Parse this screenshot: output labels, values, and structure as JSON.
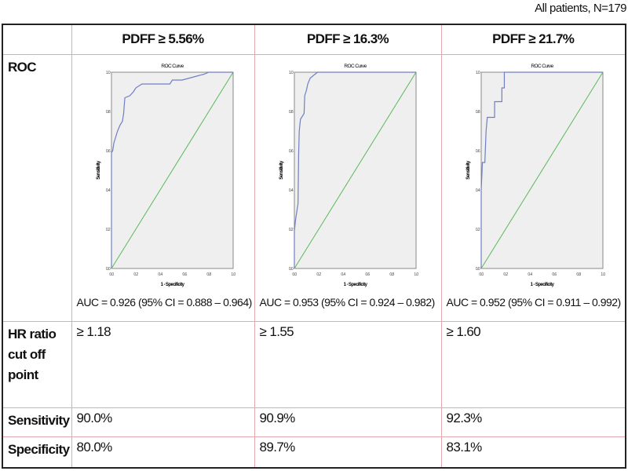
{
  "caption": "All patients, N=179",
  "table": {
    "columns": [
      "",
      "PDFF ≥ 5.56%",
      "PDFF ≥ 16.3%",
      "PDFF ≥ 21.7%"
    ],
    "rows": {
      "roc_label": "ROC",
      "auc": [
        "AUC = 0.926 (95% CI = 0.888 – 0.964)",
        "AUC = 0.953 (95% CI = 0.924 – 0.982)",
        "AUC = 0.952 (95% CI = 0.911 – 0.992)"
      ],
      "hr_label_lines": [
        "HR ratio",
        "cut off",
        "point"
      ],
      "hr_values": [
        "≥ 1.18",
        "≥ 1.55",
        "≥ 1.60"
      ],
      "sensitivity_label": "Sensitivity",
      "sensitivity": [
        "90.0%",
        "90.9%",
        "92.3%"
      ],
      "specificity_label": "Specificity",
      "specificity": [
        "80.0%",
        "89.7%",
        "83.1%"
      ]
    }
  },
  "chart_data": [
    {
      "type": "line",
      "title": "ROC Curve",
      "xlabel": "1 - Specificity",
      "ylabel": "Sensitivity",
      "xlim": [
        0,
        1
      ],
      "ylim": [
        0,
        1
      ],
      "xticks": [
        "0.0",
        "0.2",
        "0.4",
        "0.6",
        "0.8",
        "1.0"
      ],
      "yticks": [
        "0.0",
        "0.2",
        "0.4",
        "0.6",
        "0.8",
        "1.0"
      ],
      "series": [
        {
          "color": "#6f7fc4",
          "points": [
            [
              0,
              0
            ],
            [
              0,
              0.59
            ],
            [
              0.01,
              0.6
            ],
            [
              0.02,
              0.64
            ],
            [
              0.03,
              0.66
            ],
            [
              0.05,
              0.7
            ],
            [
              0.07,
              0.73
            ],
            [
              0.09,
              0.75
            ],
            [
              0.1,
              0.79
            ],
            [
              0.11,
              0.87
            ],
            [
              0.15,
              0.88
            ],
            [
              0.18,
              0.9
            ],
            [
              0.2,
              0.92
            ],
            [
              0.25,
              0.94
            ],
            [
              0.48,
              0.94
            ],
            [
              0.5,
              0.96
            ],
            [
              0.58,
              0.96
            ],
            [
              0.64,
              0.97
            ],
            [
              0.7,
              0.98
            ],
            [
              0.76,
              0.99
            ],
            [
              0.8,
              1
            ],
            [
              1,
              1
            ]
          ]
        }
      ],
      "reference_line": {
        "color": "#5cb85c",
        "points": [
          [
            0,
            0
          ],
          [
            1,
            1
          ]
        ]
      }
    },
    {
      "type": "line",
      "title": "ROC Curve",
      "xlabel": "1 - Specificity",
      "ylabel": "Sensitivity",
      "xlim": [
        0,
        1
      ],
      "ylim": [
        0,
        1
      ],
      "xticks": [
        "0.0",
        "0.2",
        "0.4",
        "0.6",
        "0.8",
        "1.0"
      ],
      "yticks": [
        "0.0",
        "0.2",
        "0.4",
        "0.6",
        "0.8",
        "1.0"
      ],
      "series": [
        {
          "color": "#6f7fc4",
          "points": [
            [
              0,
              0
            ],
            [
              0,
              0.19
            ],
            [
              0.01,
              0.25
            ],
            [
              0.03,
              0.33
            ],
            [
              0.035,
              0.58
            ],
            [
              0.04,
              0.7
            ],
            [
              0.05,
              0.76
            ],
            [
              0.08,
              0.79
            ],
            [
              0.085,
              0.88
            ],
            [
              0.1,
              0.91
            ],
            [
              0.11,
              0.94
            ],
            [
              0.13,
              0.97
            ],
            [
              0.19,
              1
            ],
            [
              1,
              1
            ]
          ]
        }
      ],
      "reference_line": {
        "color": "#5cb85c",
        "points": [
          [
            0,
            0
          ],
          [
            1,
            1
          ]
        ]
      }
    },
    {
      "type": "line",
      "title": "ROC Curve",
      "xlabel": "1 - Specificity",
      "ylabel": "Sensitivity",
      "xlim": [
        0,
        1
      ],
      "ylim": [
        0,
        1
      ],
      "xticks": [
        "0.0",
        "0.2",
        "0.4",
        "0.6",
        "0.8",
        "1.0"
      ],
      "yticks": [
        "0.0",
        "0.2",
        "0.4",
        "0.6",
        "0.8",
        "1.0"
      ],
      "series": [
        {
          "color": "#6f7fc4",
          "points": [
            [
              0,
              0
            ],
            [
              0,
              0.4
            ],
            [
              0.01,
              0.54
            ],
            [
              0.03,
              0.54
            ],
            [
              0.04,
              0.7
            ],
            [
              0.05,
              0.77
            ],
            [
              0.11,
              0.77
            ],
            [
              0.11,
              0.85
            ],
            [
              0.17,
              0.85
            ],
            [
              0.17,
              0.92
            ],
            [
              0.19,
              0.92
            ],
            [
              0.19,
              1
            ],
            [
              1,
              1
            ]
          ]
        }
      ],
      "reference_line": {
        "color": "#5cb85c",
        "points": [
          [
            0,
            0
          ],
          [
            1,
            1
          ]
        ]
      }
    }
  ]
}
